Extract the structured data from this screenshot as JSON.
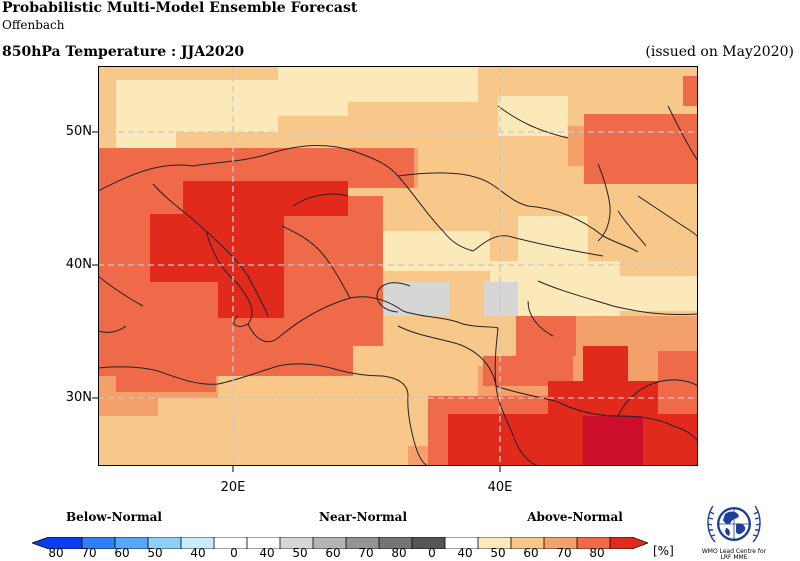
{
  "header": {
    "title": "Probabilistic Multi-Model Ensemble Forecast",
    "subtitle": "Offenbach",
    "variable": "850hPa Temperature : JJA2020",
    "issued": "(issued on May2020)"
  },
  "map": {
    "lat_labels": [
      "50N",
      "40N",
      "30N"
    ],
    "lon_labels": [
      "20E",
      "40E"
    ]
  },
  "legend": {
    "categories": [
      "Below-Normal",
      "Near-Normal",
      "Above-Normal"
    ],
    "ticks": [
      "80",
      "70",
      "60",
      "50",
      "40",
      "0",
      "40",
      "50",
      "60",
      "70",
      "80",
      "0",
      "40",
      "50",
      "60",
      "70",
      "80"
    ],
    "unit": "[%]",
    "colors": {
      "below": [
        "#0a3df0",
        "#2f7ff6",
        "#55a8f5",
        "#8ccff8",
        "#c8ecfb"
      ],
      "white": "#ffffff",
      "near": [
        "#d6d6d6",
        "#b4b4b4",
        "#949494",
        "#757575",
        "#555555"
      ],
      "above": [
        "#fbe9b9",
        "#f8c78a",
        "#f4a06a",
        "#ee6a48",
        "#e12a1c",
        "#cc0d2c"
      ]
    }
  },
  "logo": {
    "icon": "wmo-globe-icon",
    "text_lines": [
      "WMO Lead Centre for",
      "LRF MME"
    ]
  }
}
